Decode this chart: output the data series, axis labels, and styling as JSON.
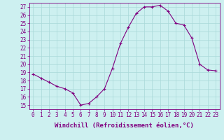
{
  "x": [
    0,
    1,
    2,
    3,
    4,
    5,
    6,
    7,
    8,
    9,
    10,
    11,
    12,
    13,
    14,
    15,
    16,
    17,
    18,
    19,
    20,
    21,
    22,
    23
  ],
  "y": [
    18.8,
    18.3,
    17.8,
    17.3,
    17.0,
    16.5,
    15.0,
    15.2,
    16.0,
    17.0,
    19.5,
    22.5,
    24.5,
    26.2,
    27.0,
    27.0,
    27.2,
    26.5,
    25.0,
    24.8,
    23.2,
    20.0,
    19.3,
    19.2
  ],
  "line_color": "#800080",
  "marker": "+",
  "marker_size": 3,
  "marker_linewidth": 0.8,
  "background_color": "#cdf0f0",
  "grid_color": "#a8d8d8",
  "xlabel": "Windchill (Refroidissement éolien,°C)",
  "xlabel_fontsize": 6.5,
  "ylabel_ticks": [
    15,
    16,
    17,
    18,
    19,
    20,
    21,
    22,
    23,
    24,
    25,
    26,
    27
  ],
  "xlim": [
    -0.5,
    23.5
  ],
  "ylim": [
    14.5,
    27.5
  ],
  "tick_fontsize": 5.5,
  "line_width": 0.8,
  "spine_color": "#800080"
}
